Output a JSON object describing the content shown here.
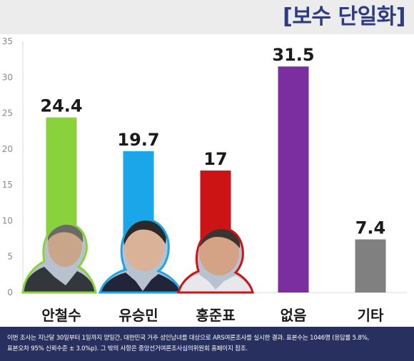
{
  "header": {
    "title": "[보수 단일화]"
  },
  "colors": {
    "header_title": "#2e3a86",
    "footer_bg": "#27305e",
    "grid": "#d8d8d8"
  },
  "chart_data": {
    "type": "bar",
    "title": "[보수 단일화]",
    "categories": [
      "안철수",
      "유승민",
      "홍준표",
      "없음",
      "기타"
    ],
    "values": [
      24.4,
      19.7,
      17,
      31.5,
      7.4
    ],
    "value_labels": [
      "24.4",
      "19.7",
      "17",
      "31.5",
      "7.4"
    ],
    "bar_colors": [
      "#8ad23c",
      "#1ba6e9",
      "#cc1414",
      "#7a2ea0",
      "#808080"
    ],
    "portrait_outline_colors": [
      "#8ad23c",
      "#1ba6e9",
      "#cc1414"
    ],
    "ylim": [
      0,
      35
    ],
    "yticks": [
      0,
      5,
      10,
      15,
      20,
      25,
      30,
      35
    ],
    "xlabel": "",
    "ylabel": "",
    "grid": false,
    "legend": "none"
  },
  "footer": {
    "lines": [
      "이번 조사는 지난달 30일부터 1일까지 양일간, 대한민국 거주 성인남녀를 대상으로 ARS여론조사를 실시한 결과. 표본수는 1046명 (응답률 5.8%,",
      "표본오차 95% 신뢰수준 ± 3.0%p). 그 밖의 사항은 중앙선거여론조사심의위원회 홈페이지 참조."
    ]
  }
}
